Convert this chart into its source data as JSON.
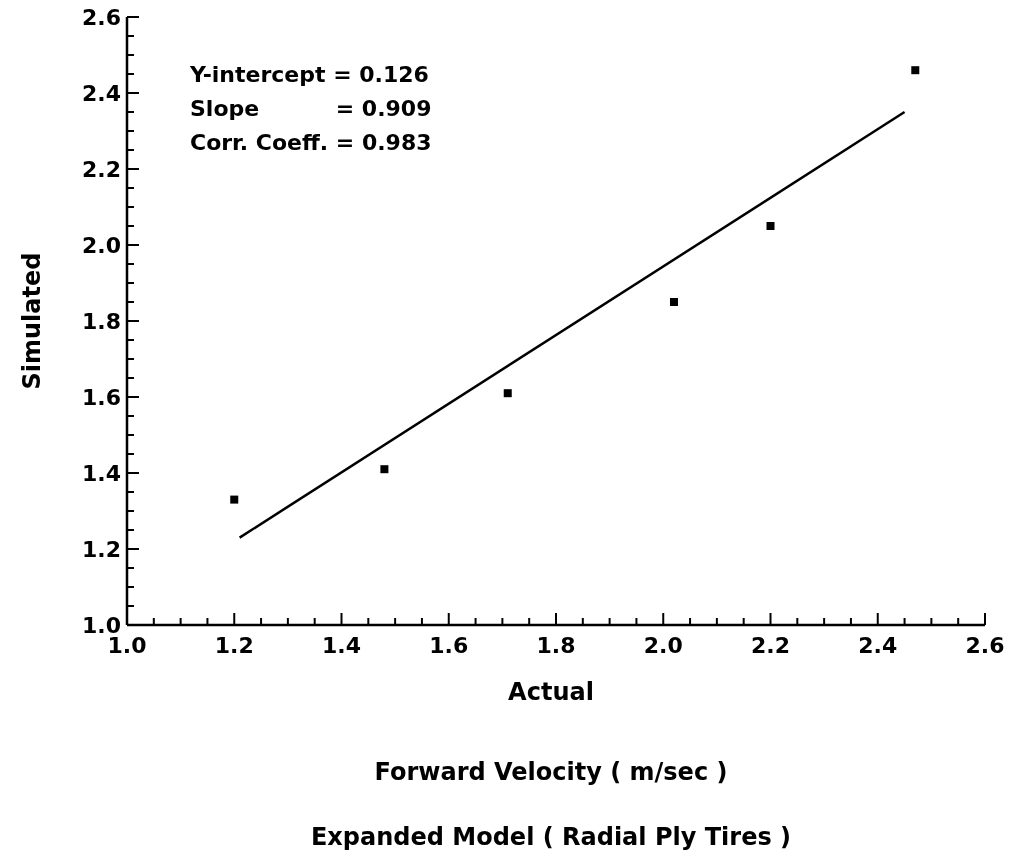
{
  "chart_data": {
    "type": "scatter",
    "title": "Forward Velocity ( m/sec )",
    "subtitle": "Expanded Model ( Radial Ply Tires )",
    "xlabel": "Actual",
    "ylabel": "Simulated",
    "xlim": [
      1.0,
      2.6
    ],
    "ylim": [
      1.0,
      2.6
    ],
    "xticks": [
      {
        "value": 1.0,
        "label": "1.0"
      },
      {
        "value": 1.05,
        "label": null
      },
      {
        "value": 1.1,
        "label": null
      },
      {
        "value": 1.15,
        "label": null
      },
      {
        "value": 1.2,
        "label": "1.2"
      },
      {
        "value": 1.25,
        "label": null
      },
      {
        "value": 1.3,
        "label": null
      },
      {
        "value": 1.35,
        "label": null
      },
      {
        "value": 1.4,
        "label": "1.4"
      },
      {
        "value": 1.45,
        "label": null
      },
      {
        "value": 1.5,
        "label": null
      },
      {
        "value": 1.55,
        "label": null
      },
      {
        "value": 1.6,
        "label": "1.6"
      },
      {
        "value": 1.65,
        "label": null
      },
      {
        "value": 1.7,
        "label": null
      },
      {
        "value": 1.75,
        "label": null
      },
      {
        "value": 1.8,
        "label": "1.8"
      },
      {
        "value": 1.85,
        "label": null
      },
      {
        "value": 1.9,
        "label": null
      },
      {
        "value": 1.95,
        "label": null
      },
      {
        "value": 2.0,
        "label": "2.0"
      },
      {
        "value": 2.05,
        "label": null
      },
      {
        "value": 2.1,
        "label": null
      },
      {
        "value": 2.15,
        "label": null
      },
      {
        "value": 2.2,
        "label": "2.2"
      },
      {
        "value": 2.25,
        "label": null
      },
      {
        "value": 2.3,
        "label": null
      },
      {
        "value": 2.35,
        "label": null
      },
      {
        "value": 2.4,
        "label": "2.4"
      },
      {
        "value": 2.45,
        "label": null
      },
      {
        "value": 2.5,
        "label": null
      },
      {
        "value": 2.55,
        "label": null
      },
      {
        "value": 2.6,
        "label": "2.6"
      }
    ],
    "yticks": [
      {
        "value": 1.0,
        "label": "1.0"
      },
      {
        "value": 1.05,
        "label": null
      },
      {
        "value": 1.1,
        "label": null
      },
      {
        "value": 1.15,
        "label": null
      },
      {
        "value": 1.2,
        "label": "1.2"
      },
      {
        "value": 1.25,
        "label": null
      },
      {
        "value": 1.3,
        "label": null
      },
      {
        "value": 1.35,
        "label": null
      },
      {
        "value": 1.4,
        "label": "1.4"
      },
      {
        "value": 1.45,
        "label": null
      },
      {
        "value": 1.5,
        "label": null
      },
      {
        "value": 1.55,
        "label": null
      },
      {
        "value": 1.6,
        "label": "1.6"
      },
      {
        "value": 1.65,
        "label": null
      },
      {
        "value": 1.7,
        "label": null
      },
      {
        "value": 1.75,
        "label": null
      },
      {
        "value": 1.8,
        "label": "1.8"
      },
      {
        "value": 1.85,
        "label": null
      },
      {
        "value": 1.9,
        "label": null
      },
      {
        "value": 1.95,
        "label": null
      },
      {
        "value": 2.0,
        "label": "2.0"
      },
      {
        "value": 2.05,
        "label": null
      },
      {
        "value": 2.1,
        "label": null
      },
      {
        "value": 2.15,
        "label": null
      },
      {
        "value": 2.2,
        "label": "2.2"
      },
      {
        "value": 2.25,
        "label": null
      },
      {
        "value": 2.3,
        "label": null
      },
      {
        "value": 2.35,
        "label": null
      },
      {
        "value": 2.4,
        "label": "2.4"
      },
      {
        "value": 2.45,
        "label": null
      },
      {
        "value": 2.5,
        "label": null
      },
      {
        "value": 2.55,
        "label": null
      },
      {
        "value": 2.6,
        "label": "2.6"
      }
    ],
    "series": [
      {
        "type": "scatter",
        "color": "#000000",
        "marker": "square",
        "x": [
          1.2,
          1.48,
          1.71,
          2.02,
          2.2,
          2.47
        ],
        "values": [
          1.33,
          1.41,
          1.61,
          1.85,
          2.05,
          2.46
        ]
      },
      {
        "type": "line",
        "color": "#000000",
        "line_style": "solid",
        "x": [
          1.21,
          2.45
        ],
        "values": [
          1.23,
          2.35
        ]
      }
    ],
    "annotations": [
      "Y-intercept = 0.126",
      "Slope          = 0.909",
      "Corr. Coeff. = 0.983"
    ],
    "grid": false
  }
}
